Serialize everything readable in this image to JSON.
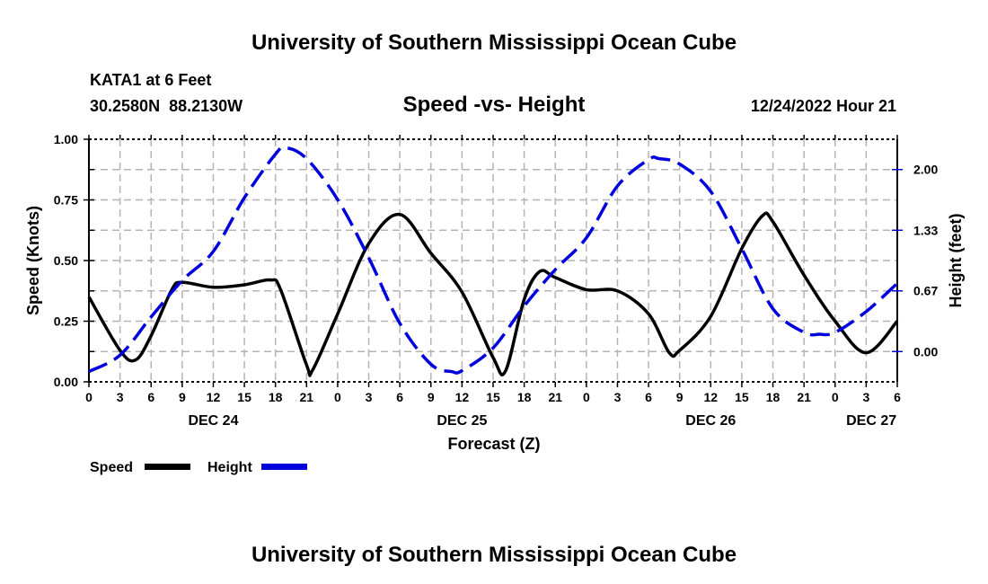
{
  "header": {
    "title": "University of Southern Mississippi Ocean Cube",
    "station": "KATA1 at 6 Feet",
    "coords": "30.2580N  88.2130W",
    "datetime": "12/24/2022 Hour 21",
    "footer_title": "University of Southern Mississippi Ocean Cube"
  },
  "chart_data": {
    "type": "line",
    "title": "Speed -vs- Height",
    "xlabel": "Forecast (Z)",
    "ylabel": "Speed (Knots)",
    "y2label": "Height (feet)",
    "xlim": [
      0,
      78
    ],
    "ylim": [
      0,
      1.0
    ],
    "y2lim": [
      -0.333,
      2.333
    ],
    "grid": true,
    "x_tick_labels": [
      "0",
      "3",
      "6",
      "9",
      "12",
      "15",
      "18",
      "21",
      "0",
      "3",
      "6",
      "9",
      "12",
      "15",
      "18",
      "21",
      "0",
      "3",
      "6",
      "9",
      "12",
      "15",
      "18",
      "21",
      "0",
      "3",
      "6"
    ],
    "date_labels": [
      {
        "label": "DEC 24",
        "hour": 12
      },
      {
        "label": "DEC 25",
        "hour": 36
      },
      {
        "label": "DEC 26",
        "hour": 60
      },
      {
        "label": "DEC 27",
        "hour": 75.5
      }
    ],
    "y_tick_labels": [
      "0.00",
      "0.25",
      "0.50",
      "0.75",
      "1.00"
    ],
    "y_ticks": [
      0,
      0.25,
      0.5,
      0.75,
      1.0
    ],
    "y2_tick_labels": [
      "0.00",
      "0.67",
      "1.33",
      "2.00"
    ],
    "y2_ticks": [
      0,
      0.667,
      1.333,
      2.0
    ],
    "legend_placement": "bottom-left",
    "series": [
      {
        "name": "Speed",
        "axis": "left",
        "color": "#000000",
        "style": "solid",
        "x": [
          0,
          3,
          4.5,
          6,
          8,
          9,
          12,
          15,
          17.5,
          18.5,
          21,
          21.6,
          24,
          27,
          30,
          33,
          36,
          39,
          40.2,
          42,
          43.5,
          45,
          48,
          51,
          54,
          56,
          57,
          60,
          63,
          65,
          66,
          69,
          72,
          75,
          78
        ],
        "values": [
          0.35,
          0.13,
          0.09,
          0.19,
          0.38,
          0.41,
          0.39,
          0.4,
          0.42,
          0.38,
          0.07,
          0.05,
          0.28,
          0.57,
          0.69,
          0.53,
          0.37,
          0.1,
          0.045,
          0.34,
          0.455,
          0.43,
          0.38,
          0.375,
          0.28,
          0.12,
          0.13,
          0.27,
          0.55,
          0.685,
          0.66,
          0.44,
          0.25,
          0.12,
          0.25
        ]
      },
      {
        "name": "Height",
        "axis": "right",
        "color": "#0000dd",
        "style": "dashed",
        "x": [
          0,
          3,
          6,
          9,
          12,
          15,
          18,
          19,
          21,
          24,
          27,
          30,
          33,
          35,
          36,
          39,
          42,
          45,
          48,
          51,
          54,
          55,
          57,
          60,
          63,
          66,
          69,
          70.5,
          72,
          75,
          78
        ],
        "values": [
          -0.22,
          -0.04,
          0.38,
          0.78,
          1.1,
          1.69,
          2.17,
          2.24,
          2.12,
          1.67,
          1.03,
          0.31,
          -0.14,
          -0.22,
          -0.21,
          0.04,
          0.5,
          0.9,
          1.25,
          1.82,
          2.11,
          2.12,
          2.06,
          1.76,
          1.13,
          0.47,
          0.21,
          0.19,
          0.21,
          0.44,
          0.75
        ]
      }
    ]
  }
}
